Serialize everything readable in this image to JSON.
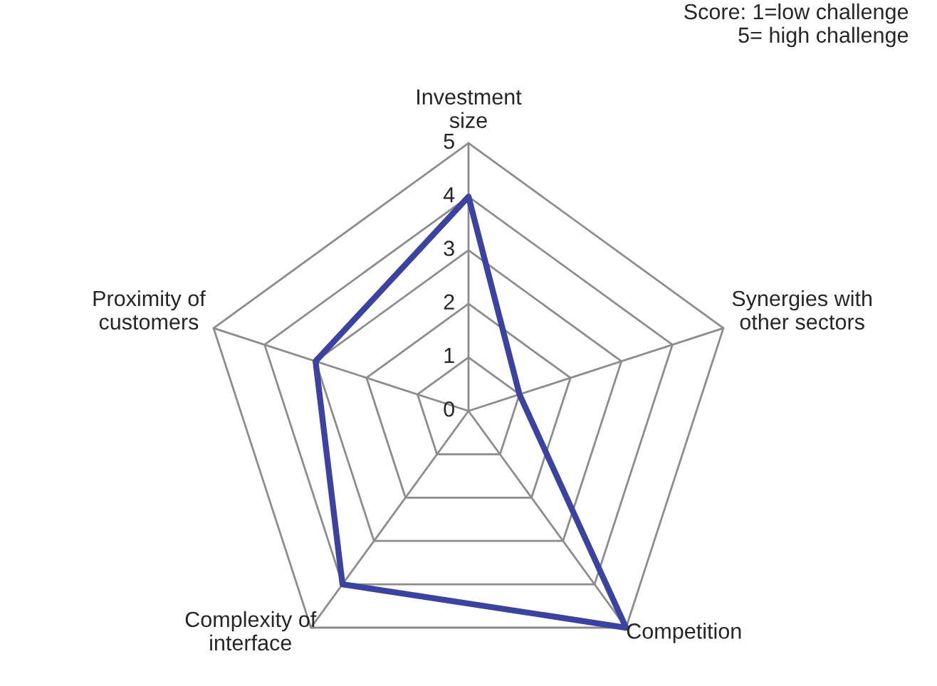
{
  "chart_data": {
    "type": "radar",
    "categories": [
      "Investment\nsize",
      "Synergies with\nother sectors",
      "Competition",
      "Complexity of\ninterface",
      "Proximity of\ncustomers"
    ],
    "series": [
      {
        "color": "#3b429f",
        "values": [
          4,
          1,
          5,
          4,
          3
        ]
      }
    ],
    "ylim": [
      0,
      5
    ],
    "yticks": [
      0,
      1,
      2,
      3,
      4,
      5
    ],
    "grid": true,
    "line_style": "solid",
    "marker": "none",
    "annotations": [
      "Score: 1=low challenge\n      5= high challenge"
    ]
  }
}
